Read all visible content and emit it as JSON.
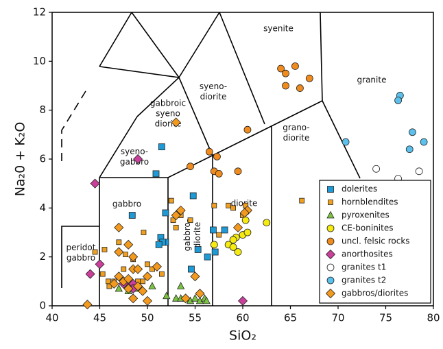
{
  "chart_data": {
    "type": "scatter",
    "x_label": "SiO₂",
    "y_label": "Na₂0 + K₂O",
    "xlim": [
      40,
      80
    ],
    "ylim": [
      0,
      12
    ],
    "xticks": [
      40,
      45,
      50,
      55,
      60,
      65,
      70,
      75,
      80
    ],
    "yticks": [
      0,
      2,
      4,
      6,
      8,
      10,
      12
    ],
    "legend": "lower right",
    "annotations": [
      [
        "syenite"
      ],
      [
        "granite"
      ],
      [
        "syeno-",
        "diorite"
      ],
      [
        "gabbroic",
        "syeno",
        "diorite"
      ],
      [
        "syeno-",
        "gabbro"
      ],
      [
        "gabbro"
      ],
      [
        "gabbro-",
        "diorite"
      ],
      [
        "diorite"
      ],
      [
        "grano-",
        "diorite"
      ],
      [
        "peridot",
        "gabbro"
      ]
    ],
    "series": [
      {
        "name": "dolerites",
        "marker": "square",
        "color": "#1e9ad6",
        "x": [
          51.5,
          50.9,
          48.4,
          51.9,
          54.8,
          51.4,
          51.9,
          51.6,
          58.1,
          56.9,
          55.3,
          56.3,
          57.1,
          54.6,
          51.2
        ],
        "y": [
          6.5,
          5.4,
          3.7,
          3.8,
          4.5,
          2.8,
          2.6,
          2.6,
          3.1,
          3.1,
          2.3,
          2.0,
          2.2,
          1.5,
          2.5
        ]
      },
      {
        "name": "hornblendites",
        "marker": "small-square",
        "color": "#f0a020",
        "x": [
          44.5,
          45.5,
          45.9,
          46.0,
          46.5,
          47.0,
          47.5,
          48.0,
          48.5,
          49.0,
          49.5,
          50.0,
          50.5,
          51.5,
          52.5,
          52.7,
          53.5,
          53.0,
          54.5,
          57.0,
          57.5,
          58.5,
          59.0,
          60.0,
          60.3,
          66.2,
          49.6,
          47.7,
          45.3
        ],
        "y": [
          2.2,
          2.3,
          1.0,
          0.8,
          1.0,
          2.6,
          1.5,
          0.9,
          1.9,
          1.0,
          1.0,
          1.7,
          1.5,
          1.3,
          4.3,
          3.5,
          3.7,
          3.2,
          3.5,
          4.1,
          2.9,
          4.1,
          4.0,
          3.7,
          4.1,
          4.3,
          3.0,
          2.1,
          1.3
        ]
      },
      {
        "name": "pyroxenites",
        "marker": "triangle",
        "color": "#7cc242",
        "x": [
          47.0,
          48.0,
          49.0,
          50.5,
          52.0,
          53.0,
          53.5,
          54.0,
          54.5,
          55.0,
          55.5,
          56.0,
          53.5,
          56.2
        ],
        "y": [
          0.7,
          0.6,
          0.7,
          0.8,
          0.4,
          0.3,
          0.8,
          0.3,
          0.2,
          0.3,
          0.2,
          0.3,
          0.3,
          0.2
        ]
      },
      {
        "name": "CE-boninites",
        "marker": "circle",
        "color": "#f5eb10",
        "x": [
          57.0,
          58.5,
          59.0,
          59.3,
          59.5,
          59.0,
          60.0,
          60.3,
          60.5,
          62.5
        ],
        "y": [
          2.5,
          2.5,
          2.4,
          2.8,
          2.2,
          2.7,
          2.9,
          3.5,
          3.0,
          3.4
        ]
      },
      {
        "name": "uncl. felsic rocks",
        "marker": "circle",
        "color": "#f08c1e",
        "x": [
          54.5,
          56.5,
          57.0,
          57.3,
          57.5,
          59.5,
          60.5,
          64.0,
          64.5,
          64.5,
          65.5,
          66.0,
          67.0
        ],
        "y": [
          5.7,
          6.3,
          5.5,
          6.1,
          5.4,
          5.5,
          7.2,
          9.7,
          9.5,
          9.0,
          9.8,
          8.9,
          9.3
        ]
      },
      {
        "name": "anorthosites",
        "marker": "diamond",
        "color": "#c8409a",
        "x": [
          44.5,
          49.0,
          45.0,
          44.0,
          47.5,
          48.5,
          48.5,
          60.0
        ],
        "y": [
          5.0,
          6.0,
          1.7,
          1.3,
          0.9,
          0.9,
          0.7,
          0.2
        ]
      },
      {
        "name": "granites t1",
        "marker": "circle",
        "color": "#ffffff",
        "x": [
          74.0,
          76.3,
          78.5
        ],
        "y": [
          5.6,
          5.2,
          5.5
        ]
      },
      {
        "name": "granites t2",
        "marker": "circle",
        "color": "#5bc0eb",
        "x": [
          70.8,
          76.5,
          76.3,
          77.8,
          79.0,
          77.5
        ],
        "y": [
          6.7,
          8.6,
          8.4,
          7.1,
          6.7,
          6.4
        ]
      },
      {
        "name": "gabbros/diorites",
        "marker": "diamond",
        "color": "#f39a1e",
        "x": [
          53.0,
          47.0,
          48.0,
          47.0,
          48.5,
          49.0,
          50.0,
          51.0,
          53.0,
          53.5,
          55.0,
          55.5,
          54.0,
          60.5,
          60.2,
          59.5,
          48.5,
          47.5,
          47.0,
          46.5,
          48.0,
          48.5,
          49.5,
          50.0,
          43.7,
          48.0,
          49.0
        ],
        "y": [
          7.5,
          3.2,
          2.5,
          2.2,
          1.5,
          1.5,
          1.2,
          1.6,
          3.7,
          3.9,
          1.2,
          0.5,
          0.3,
          3.9,
          3.8,
          3.2,
          2.0,
          1.0,
          1.2,
          0.9,
          0.7,
          0.3,
          0.6,
          0.2,
          0.05,
          1.1,
          0.8
        ]
      }
    ]
  }
}
